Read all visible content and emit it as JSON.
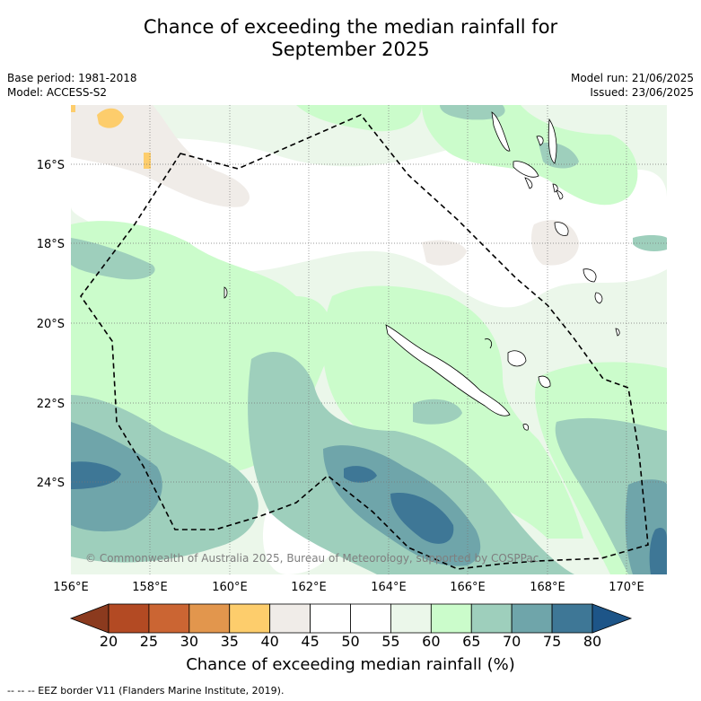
{
  "title_line1": "Chance of exceeding the median rainfall for",
  "title_line2": "September 2025",
  "meta_left": {
    "base_period": "Base period: 1981-2018",
    "model": "Model: ACCESS-S2"
  },
  "meta_right": {
    "model_run": "Model run: 21/06/2025",
    "issued": "Issued: 23/06/2025"
  },
  "lat_labels": [
    "16°S",
    "18°S",
    "20°S",
    "22°S",
    "24°S"
  ],
  "lon_labels": [
    "156°E",
    "158°E",
    "160°E",
    "162°E",
    "164°E",
    "166°E",
    "168°E",
    "170°E"
  ],
  "copyright": "© Commonwealth of Australia 2025, Bureau of Meteorology, supported by COSPPac",
  "colorbar": {
    "title": "Chance of exceeding median rainfall (%)",
    "ticks": [
      "20",
      "25",
      "30",
      "35",
      "40",
      "45",
      "50",
      "55",
      "60",
      "65",
      "70",
      "75",
      "80"
    ],
    "colors": [
      "#b34a23",
      "#cb6533",
      "#e2964d",
      "#fdcd6c",
      "#f0ece8",
      "#ffffff",
      "#ffffff",
      "#ebf7ea",
      "#cbfccb",
      "#9ecfbc",
      "#6fa5aa",
      "#3e7796"
    ],
    "under_color": "#8b3a1e",
    "over_color": "#1d5588"
  },
  "footnote": "--  --  -- EEZ border V11 (Flanders Marine Institute, 2019).",
  "colors": {
    "band_55_60": "#ebf7ea",
    "band_60_65": "#cbfccb",
    "band_65_70": "#9ecfbc",
    "band_70_75": "#6fa5aa",
    "band_75_80": "#3e7796",
    "band_40_45": "#f0ece8",
    "band_35_40": "#fdcd6c"
  }
}
